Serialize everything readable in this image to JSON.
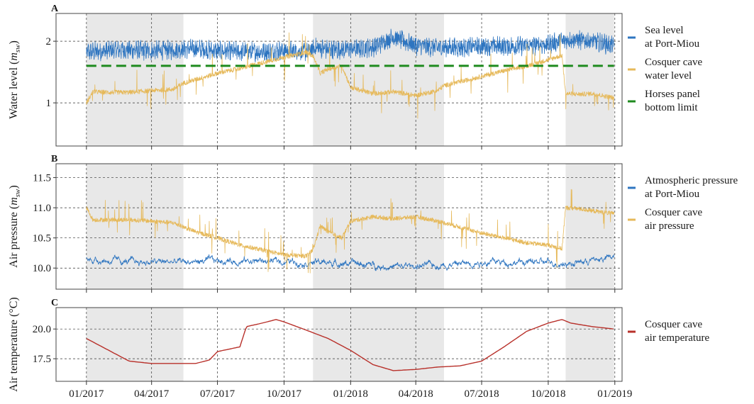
{
  "chart_data": [
    {
      "panel": "A",
      "type": "line",
      "ylabel_main": "Water level (",
      "ylabel_unit": "m",
      "ylabel_sub": "sw",
      "ylabel_end": ")",
      "ylim": [
        0.3,
        2.45
      ],
      "yticks": [
        1,
        2
      ],
      "ytick_labels": [
        "1",
        "2"
      ],
      "xlim": [
        "2016-11-20",
        "2019-01-11"
      ],
      "grid": true,
      "legend_position": "right",
      "series": [
        {
          "name": "Sea level at Port-Miou",
          "legend_lines": [
            "Sea level",
            "at Port-Miou"
          ],
          "color": "#2e75c0",
          "style": "noisy",
          "points": [
            [
              "2017-01-01",
              1.82
            ],
            [
              "2017-02-01",
              1.85
            ],
            [
              "2017-03-01",
              1.86
            ],
            [
              "2017-04-01",
              1.84
            ],
            [
              "2017-05-01",
              1.86
            ],
            [
              "2017-06-01",
              1.88
            ],
            [
              "2017-07-01",
              1.84
            ],
            [
              "2017-08-01",
              1.83
            ],
            [
              "2017-09-01",
              1.83
            ],
            [
              "2017-10-01",
              1.85
            ],
            [
              "2017-11-01",
              1.83
            ],
            [
              "2017-11-15",
              1.9
            ],
            [
              "2017-12-01",
              1.86
            ],
            [
              "2018-01-01",
              1.87
            ],
            [
              "2018-02-01",
              1.9
            ],
            [
              "2018-03-01",
              2.07
            ],
            [
              "2018-03-20",
              1.98
            ],
            [
              "2018-04-01",
              1.93
            ],
            [
              "2018-05-01",
              1.9
            ],
            [
              "2018-06-01",
              1.9
            ],
            [
              "2018-07-01",
              1.92
            ],
            [
              "2018-08-01",
              1.92
            ],
            [
              "2018-09-01",
              1.92
            ],
            [
              "2018-10-01",
              1.95
            ],
            [
              "2018-11-01",
              2.03
            ],
            [
              "2018-12-01",
              2.0
            ],
            [
              "2018-12-31",
              1.93
            ]
          ]
        },
        {
          "name": "Cosquer cave water level",
          "legend_lines": [
            "Cosquer cave",
            "water level"
          ],
          "color": "#e6b95a",
          "style": "spiky",
          "points": [
            [
              "2017-01-01",
              1.0
            ],
            [
              "2017-01-10",
              1.18
            ],
            [
              "2017-02-01",
              1.17
            ],
            [
              "2017-03-01",
              1.17
            ],
            [
              "2017-04-01",
              1.2
            ],
            [
              "2017-05-01",
              1.22
            ],
            [
              "2017-05-15",
              1.32
            ],
            [
              "2017-07-01",
              1.48
            ],
            [
              "2017-08-01",
              1.56
            ],
            [
              "2017-09-01",
              1.65
            ],
            [
              "2017-10-01",
              1.74
            ],
            [
              "2017-11-01",
              1.82
            ],
            [
              "2017-11-10",
              1.76
            ],
            [
              "2017-11-20",
              1.48
            ],
            [
              "2017-12-01",
              1.55
            ],
            [
              "2017-12-20",
              1.6
            ],
            [
              "2018-01-01",
              1.25
            ],
            [
              "2018-02-01",
              1.15
            ],
            [
              "2018-03-01",
              1.18
            ],
            [
              "2018-04-01",
              1.12
            ],
            [
              "2018-05-01",
              1.2
            ],
            [
              "2018-05-10",
              1.28
            ],
            [
              "2018-06-01",
              1.34
            ],
            [
              "2018-07-01",
              1.43
            ],
            [
              "2018-08-01",
              1.52
            ],
            [
              "2018-09-01",
              1.6
            ],
            [
              "2018-10-01",
              1.7
            ],
            [
              "2018-10-20",
              1.77
            ],
            [
              "2018-10-25",
              1.15
            ],
            [
              "2018-11-15",
              1.14
            ],
            [
              "2018-12-01",
              1.15
            ],
            [
              "2018-12-31",
              1.08
            ]
          ]
        },
        {
          "name": "Horses panel bottom limit",
          "legend_lines": [
            "Horses panel",
            "bottom limit"
          ],
          "color": "#1e8a1e",
          "style": "dashed",
          "points": [
            [
              "2017-01-01",
              1.6
            ],
            [
              "2018-12-31",
              1.6
            ]
          ]
        }
      ]
    },
    {
      "panel": "B",
      "type": "line",
      "ylabel_main": "Air pressure (",
      "ylabel_unit": "m",
      "ylabel_sub": "sw",
      "ylabel_end": ")",
      "ylim": [
        9.65,
        11.73
      ],
      "yticks": [
        10.0,
        10.5,
        11.0,
        11.5
      ],
      "ytick_labels": [
        "10.0",
        "10.5",
        "11.0",
        "11.5"
      ],
      "xlim": [
        "2016-11-20",
        "2019-01-11"
      ],
      "grid": true,
      "legend_position": "right",
      "series": [
        {
          "name": "Atmospheric pressure at Port-Miou",
          "legend_lines": [
            "Atmospheric pressure",
            "at Port-Miou"
          ],
          "color": "#2e75c0",
          "style": "wavy",
          "points": [
            [
              "2017-01-01",
              10.15
            ],
            [
              "2017-03-01",
              10.1
            ],
            [
              "2017-05-01",
              10.1
            ],
            [
              "2017-07-01",
              10.12
            ],
            [
              "2017-09-01",
              10.12
            ],
            [
              "2017-11-01",
              10.1
            ],
            [
              "2018-01-01",
              10.08
            ],
            [
              "2018-03-01",
              10.02
            ],
            [
              "2018-05-01",
              10.05
            ],
            [
              "2018-07-01",
              10.1
            ],
            [
              "2018-09-01",
              10.1
            ],
            [
              "2018-11-01",
              10.08
            ],
            [
              "2018-12-31",
              10.18
            ]
          ]
        },
        {
          "name": "Cosquer cave air pressure",
          "legend_lines": [
            "Cosquer cave",
            "air pressure"
          ],
          "color": "#e6b95a",
          "style": "spiky",
          "points": [
            [
              "2017-01-01",
              11.0
            ],
            [
              "2017-01-10",
              10.8
            ],
            [
              "2017-02-01",
              10.8
            ],
            [
              "2017-03-01",
              10.8
            ],
            [
              "2017-04-01",
              10.78
            ],
            [
              "2017-05-01",
              10.75
            ],
            [
              "2017-06-01",
              10.6
            ],
            [
              "2017-07-01",
              10.5
            ],
            [
              "2017-08-01",
              10.38
            ],
            [
              "2017-09-01",
              10.3
            ],
            [
              "2017-10-01",
              10.22
            ],
            [
              "2017-11-01",
              10.2
            ],
            [
              "2017-11-10",
              10.3
            ],
            [
              "2017-11-20",
              10.7
            ],
            [
              "2017-12-01",
              10.6
            ],
            [
              "2017-12-20",
              10.5
            ],
            [
              "2018-01-01",
              10.78
            ],
            [
              "2018-02-01",
              10.85
            ],
            [
              "2018-03-01",
              10.82
            ],
            [
              "2018-04-01",
              10.85
            ],
            [
              "2018-05-01",
              10.78
            ],
            [
              "2018-06-01",
              10.68
            ],
            [
              "2018-07-01",
              10.58
            ],
            [
              "2018-08-01",
              10.5
            ],
            [
              "2018-09-01",
              10.42
            ],
            [
              "2018-10-01",
              10.38
            ],
            [
              "2018-10-20",
              10.32
            ],
            [
              "2018-10-25",
              11.0
            ],
            [
              "2018-11-15",
              10.98
            ],
            [
              "2018-12-01",
              10.95
            ],
            [
              "2018-12-31",
              10.9
            ]
          ]
        }
      ]
    },
    {
      "panel": "C",
      "type": "line",
      "ylabel_main": "Air temperature (°C)",
      "ylim": [
        15.6,
        21.8
      ],
      "yticks": [
        17.5,
        20.0
      ],
      "ytick_labels": [
        "17.5",
        "20.0"
      ],
      "xlim": [
        "2016-11-20",
        "2019-01-11"
      ],
      "grid": true,
      "legend_position": "right",
      "series": [
        {
          "name": "Cosquer cave air temperature",
          "legend_lines": [
            "Cosquer cave",
            "air temperature"
          ],
          "color": "#b8302a",
          "style": "smooth",
          "points": [
            [
              "2017-01-01",
              19.2
            ],
            [
              "2017-02-01",
              18.2
            ],
            [
              "2017-03-01",
              17.3
            ],
            [
              "2017-04-01",
              17.1
            ],
            [
              "2017-05-01",
              17.1
            ],
            [
              "2017-06-01",
              17.1
            ],
            [
              "2017-06-20",
              17.4
            ],
            [
              "2017-07-01",
              18.1
            ],
            [
              "2017-08-01",
              18.5
            ],
            [
              "2017-08-10",
              20.2
            ],
            [
              "2017-09-01",
              20.5
            ],
            [
              "2017-09-20",
              20.8
            ],
            [
              "2017-10-01",
              20.6
            ],
            [
              "2017-11-01",
              19.9
            ],
            [
              "2017-12-01",
              19.2
            ],
            [
              "2018-01-01",
              18.2
            ],
            [
              "2018-02-01",
              17.0
            ],
            [
              "2018-03-01",
              16.5
            ],
            [
              "2018-04-01",
              16.6
            ],
            [
              "2018-05-01",
              16.8
            ],
            [
              "2018-06-01",
              16.9
            ],
            [
              "2018-07-01",
              17.3
            ],
            [
              "2018-08-01",
              18.5
            ],
            [
              "2018-09-01",
              19.8
            ],
            [
              "2018-10-01",
              20.5
            ],
            [
              "2018-10-20",
              20.8
            ],
            [
              "2018-11-01",
              20.5
            ],
            [
              "2018-12-01",
              20.2
            ],
            [
              "2018-12-31",
              20.0
            ]
          ]
        }
      ]
    }
  ],
  "panel_letters": [
    "A",
    "B",
    "C"
  ],
  "shaded_periods": [
    [
      "2017-01-01",
      "2017-05-15"
    ],
    [
      "2017-11-10",
      "2018-05-10"
    ],
    [
      "2018-10-25",
      "2018-12-31"
    ]
  ],
  "shade_color": "#e8e8e8",
  "x_ticks": [
    "2017-01-01",
    "2017-04-01",
    "2017-07-01",
    "2017-10-01",
    "2018-01-01",
    "2018-04-01",
    "2018-07-01",
    "2018-10-01",
    "2019-01-01"
  ],
  "x_tick_labels": [
    "01/2017",
    "04/2017",
    "07/2017",
    "10/2017",
    "01/2018",
    "04/2018",
    "07/2018",
    "10/2018",
    "01/2019"
  ]
}
